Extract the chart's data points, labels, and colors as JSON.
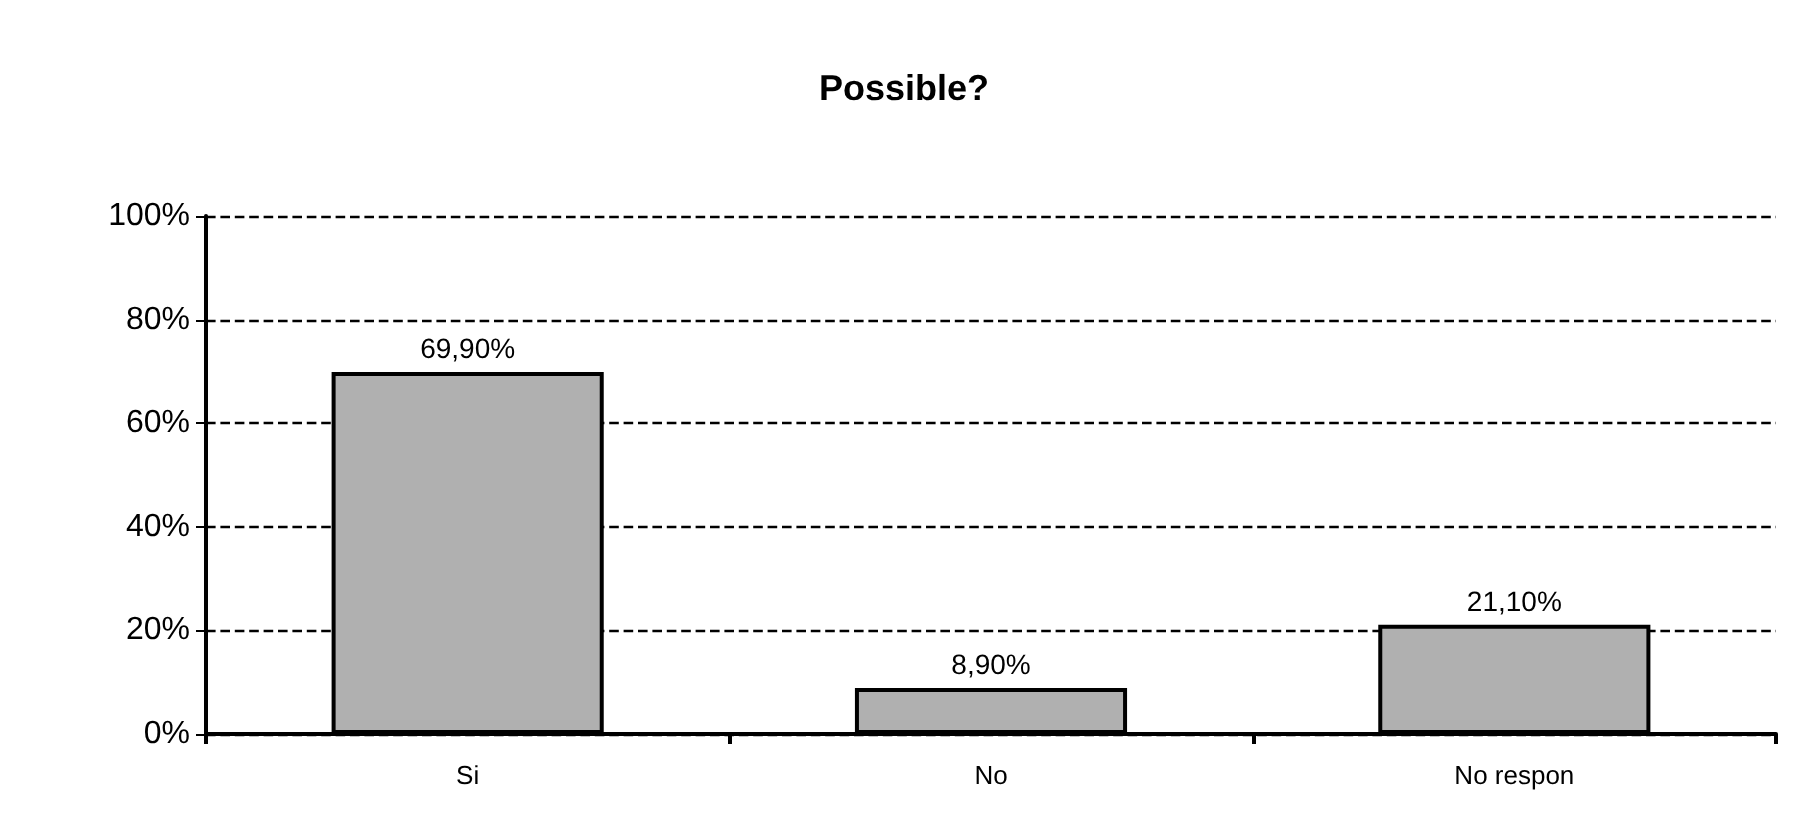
{
  "chart_data": {
    "type": "bar",
    "title": "Possible?",
    "categories": [
      "Si",
      "No",
      "No respon"
    ],
    "values": [
      69.9,
      8.9,
      21.1
    ],
    "value_labels": [
      "69,90%",
      "8,90%",
      "21,10%"
    ],
    "color": "#b0b0b0",
    "ylim": [
      0,
      100
    ],
    "yticks": [
      {
        "value": 0,
        "label": "0%"
      },
      {
        "value": 20,
        "label": "20%"
      },
      {
        "value": 40,
        "label": "40%"
      },
      {
        "value": 60,
        "label": "60%"
      },
      {
        "value": 80,
        "label": "80%"
      },
      {
        "value": 100,
        "label": "100%"
      }
    ],
    "grid": "y",
    "line_style": "dashed"
  }
}
